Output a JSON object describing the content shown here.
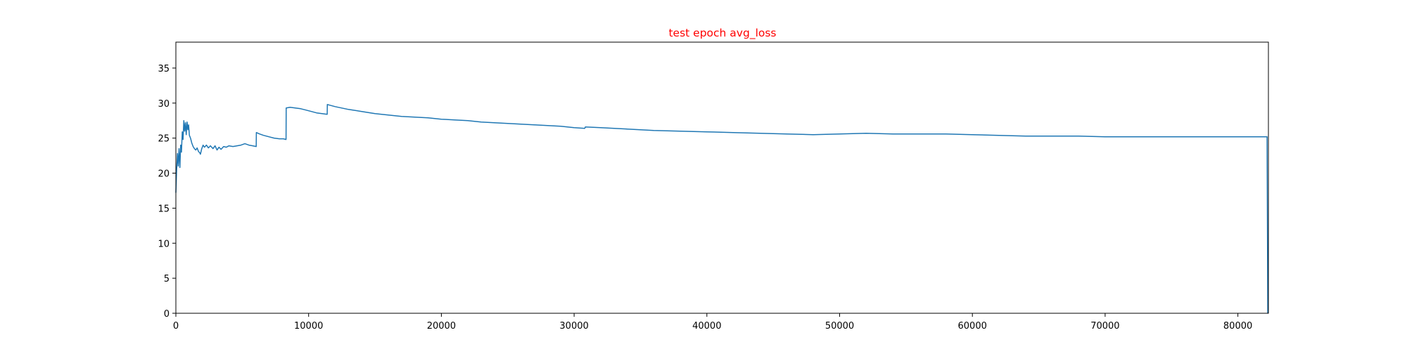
{
  "chart_data": {
    "type": "line",
    "title": "test epoch avg_loss",
    "title_color": "#ff0000",
    "xlabel": "",
    "ylabel": "",
    "xlim": [
      0,
      82300
    ],
    "ylim": [
      0,
      38.7
    ],
    "xticks": [
      0,
      10000,
      20000,
      30000,
      40000,
      50000,
      60000,
      70000,
      80000
    ],
    "yticks": [
      0,
      5,
      10,
      15,
      20,
      25,
      30,
      35
    ],
    "grid": false,
    "legend": "none",
    "series": [
      {
        "color": "#1f77b4",
        "points": [
          [
            0,
            17.2
          ],
          [
            60,
            20.5
          ],
          [
            120,
            22.8
          ],
          [
            180,
            21.0
          ],
          [
            240,
            23.5
          ],
          [
            300,
            20.8
          ],
          [
            360,
            24.0
          ],
          [
            420,
            23.0
          ],
          [
            480,
            25.9
          ],
          [
            540,
            24.8
          ],
          [
            600,
            27.5
          ],
          [
            660,
            26.0
          ],
          [
            720,
            27.2
          ],
          [
            780,
            25.5
          ],
          [
            840,
            27.3
          ],
          [
            900,
            26.2
          ],
          [
            960,
            26.9
          ],
          [
            1020,
            25.4
          ],
          [
            1100,
            25.0
          ],
          [
            1200,
            24.3
          ],
          [
            1300,
            23.8
          ],
          [
            1400,
            23.5
          ],
          [
            1500,
            23.3
          ],
          [
            1600,
            23.6
          ],
          [
            1700,
            23.1
          ],
          [
            1800,
            22.9
          ],
          [
            1850,
            22.7
          ],
          [
            1950,
            23.5
          ],
          [
            2050,
            24.0
          ],
          [
            2150,
            23.7
          ],
          [
            2300,
            24.0
          ],
          [
            2450,
            23.6
          ],
          [
            2600,
            23.9
          ],
          [
            2800,
            23.5
          ],
          [
            2950,
            23.9
          ],
          [
            3100,
            23.3
          ],
          [
            3250,
            23.7
          ],
          [
            3400,
            23.4
          ],
          [
            3600,
            23.8
          ],
          [
            3800,
            23.7
          ],
          [
            4000,
            23.9
          ],
          [
            4300,
            23.8
          ],
          [
            4600,
            23.9
          ],
          [
            4900,
            24.0
          ],
          [
            5200,
            24.2
          ],
          [
            5500,
            24.0
          ],
          [
            5800,
            23.9
          ],
          [
            6050,
            23.8
          ],
          [
            6060,
            25.8
          ],
          [
            6300,
            25.6
          ],
          [
            6600,
            25.4
          ],
          [
            7000,
            25.2
          ],
          [
            7400,
            25.0
          ],
          [
            7800,
            24.9
          ],
          [
            8100,
            24.9
          ],
          [
            8300,
            24.8
          ],
          [
            8310,
            29.3
          ],
          [
            8600,
            29.4
          ],
          [
            9000,
            29.3
          ],
          [
            9400,
            29.2
          ],
          [
            9800,
            29.0
          ],
          [
            10200,
            28.8
          ],
          [
            10600,
            28.6
          ],
          [
            11000,
            28.5
          ],
          [
            11400,
            28.4
          ],
          [
            11410,
            29.8
          ],
          [
            12000,
            29.5
          ],
          [
            13000,
            29.1
          ],
          [
            14000,
            28.8
          ],
          [
            15000,
            28.5
          ],
          [
            16000,
            28.3
          ],
          [
            17000,
            28.1
          ],
          [
            18000,
            28.0
          ],
          [
            19000,
            27.9
          ],
          [
            20000,
            27.7
          ],
          [
            21000,
            27.6
          ],
          [
            22000,
            27.5
          ],
          [
            23000,
            27.3
          ],
          [
            24000,
            27.2
          ],
          [
            25000,
            27.1
          ],
          [
            26000,
            27.0
          ],
          [
            27000,
            26.9
          ],
          [
            28000,
            26.8
          ],
          [
            29000,
            26.7
          ],
          [
            30000,
            26.5
          ],
          [
            30800,
            26.4
          ],
          [
            30850,
            26.6
          ],
          [
            32000,
            26.5
          ],
          [
            34000,
            26.3
          ],
          [
            36000,
            26.1
          ],
          [
            38000,
            26.0
          ],
          [
            40000,
            25.9
          ],
          [
            42000,
            25.8
          ],
          [
            44000,
            25.7
          ],
          [
            46000,
            25.6
          ],
          [
            48000,
            25.5
          ],
          [
            50000,
            25.6
          ],
          [
            52000,
            25.7
          ],
          [
            54000,
            25.6
          ],
          [
            56000,
            25.6
          ],
          [
            58000,
            25.6
          ],
          [
            60000,
            25.5
          ],
          [
            62000,
            25.4
          ],
          [
            64000,
            25.3
          ],
          [
            66000,
            25.3
          ],
          [
            68000,
            25.3
          ],
          [
            70000,
            25.2
          ],
          [
            72000,
            25.2
          ],
          [
            74000,
            25.2
          ],
          [
            76000,
            25.2
          ],
          [
            78000,
            25.2
          ],
          [
            80000,
            25.2
          ],
          [
            82200,
            25.2
          ],
          [
            82250,
            0.0
          ]
        ]
      }
    ]
  }
}
